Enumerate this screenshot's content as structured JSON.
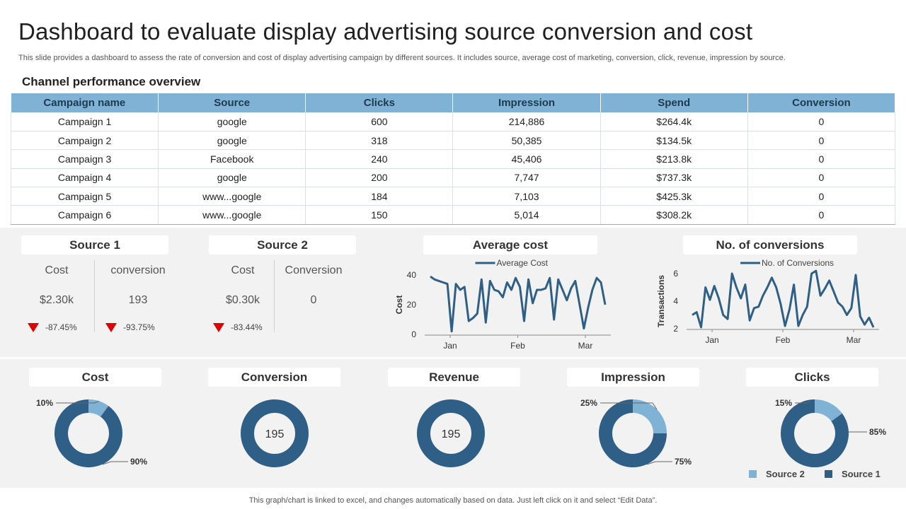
{
  "header": {
    "title": "Dashboard to evaluate display advertising source conversion and cost",
    "subtitle": "This slide provides a dashboard to assess the rate of conversion and cost of display advertising campaign by different sources. It includes source, average cost of marketing, conversion, click, revenue, impression by source."
  },
  "channel": {
    "title": "Channel performance overview",
    "columns": [
      "Campaign name",
      "Source",
      "Clicks",
      "Impression",
      "Spend",
      "Conversion"
    ],
    "rows": [
      [
        "Campaign 1",
        "google",
        "600",
        "214,886",
        "$264.4k",
        "0"
      ],
      [
        "Campaign 2",
        "google",
        "318",
        "50,385",
        "$134.5k",
        "0"
      ],
      [
        "Campaign 3",
        "Facebook",
        "240",
        "45,406",
        "$213.8k",
        "0"
      ],
      [
        "Campaign 4",
        "google",
        "200",
        "7,747",
        "$737.3k",
        "0"
      ],
      [
        "Campaign 5",
        "www...google",
        "184",
        "7,103",
        "$425.3k",
        "0"
      ],
      [
        "Campaign 6",
        "www...google",
        "150",
        "5,014",
        "$308.2k",
        "0"
      ]
    ]
  },
  "source1": {
    "title": "Source 1",
    "cost_label": "Cost",
    "cost_value": "$2.30k",
    "cost_change": "-87.45%",
    "conv_label": "conversion",
    "conv_value": "193",
    "conv_change": "-93.75%"
  },
  "source2": {
    "title": "Source 2",
    "cost_label": "Cost",
    "cost_value": "$0.30k",
    "cost_change": "-83.44%",
    "conv_label": "Conversion",
    "conv_value": "0"
  },
  "colors": {
    "primary": "#2f5f86",
    "light": "#7fb2d4",
    "down": "#e00000"
  },
  "chart_data": [
    {
      "type": "line",
      "title": "Average cost",
      "legend": "Average Cost",
      "ylabel": "Cost",
      "ylim": [
        0,
        40
      ],
      "yticks": [
        0,
        20,
        40
      ],
      "xticks": [
        "Jan",
        "Feb",
        "Mar"
      ],
      "values": [
        39,
        37,
        36,
        35,
        34,
        2,
        34,
        30,
        32,
        9,
        11,
        14,
        37,
        8,
        36,
        30,
        29,
        25,
        35,
        30,
        38,
        32,
        9,
        37,
        21,
        30,
        30,
        31,
        38,
        10,
        37,
        30,
        23,
        31,
        36,
        20,
        4,
        18,
        30,
        38,
        35,
        20
      ]
    },
    {
      "type": "line",
      "title": "No. of conversions",
      "legend": "No. of Conversions",
      "ylabel": "Transactions",
      "ylim": [
        2,
        6
      ],
      "yticks": [
        2,
        4,
        6
      ],
      "xticks": [
        "Jan",
        "Feb",
        "Mar"
      ],
      "values": [
        3.0,
        3.2,
        2.1,
        5.0,
        4.1,
        5.1,
        4.2,
        3.0,
        2.7,
        6.0,
        5.0,
        4.2,
        5.2,
        2.6,
        3.5,
        3.6,
        4.4,
        5.0,
        5.7,
        5.0,
        3.8,
        2.2,
        3.4,
        5.2,
        2.2,
        3.0,
        3.6,
        6.0,
        6.2,
        4.4,
        4.9,
        5.5,
        4.7,
        3.9,
        3.6,
        3.0,
        3.5,
        5.9,
        2.9,
        2.3,
        2.8,
        2.1
      ]
    },
    {
      "type": "pie",
      "title": "Cost",
      "slices": [
        {
          "label": "Source 2",
          "value": 10,
          "display": "10%"
        },
        {
          "label": "Source 1",
          "value": 90,
          "display": "90%"
        }
      ]
    },
    {
      "type": "pie",
      "title": "Conversion",
      "center": "195",
      "slices": [
        {
          "label": "Source 1",
          "value": 100
        }
      ]
    },
    {
      "type": "pie",
      "title": "Revenue",
      "center": "195",
      "slices": [
        {
          "label": "Source 1",
          "value": 100
        }
      ]
    },
    {
      "type": "pie",
      "title": "Impression",
      "slices": [
        {
          "label": "Source 2",
          "value": 25,
          "display": "25%"
        },
        {
          "label": "Source 1",
          "value": 75,
          "display": "75%"
        }
      ]
    },
    {
      "type": "pie",
      "title": "Clicks",
      "slices": [
        {
          "label": "Source 2",
          "value": 15,
          "display": "15%"
        },
        {
          "label": "Source 1",
          "value": 85,
          "display": "85%"
        }
      ],
      "legend": [
        "Source 2",
        "Source 1"
      ]
    }
  ],
  "footer": "This graph/chart is linked to excel,  and changes automatically based on data. Just left click on it and select “Edit Data”."
}
